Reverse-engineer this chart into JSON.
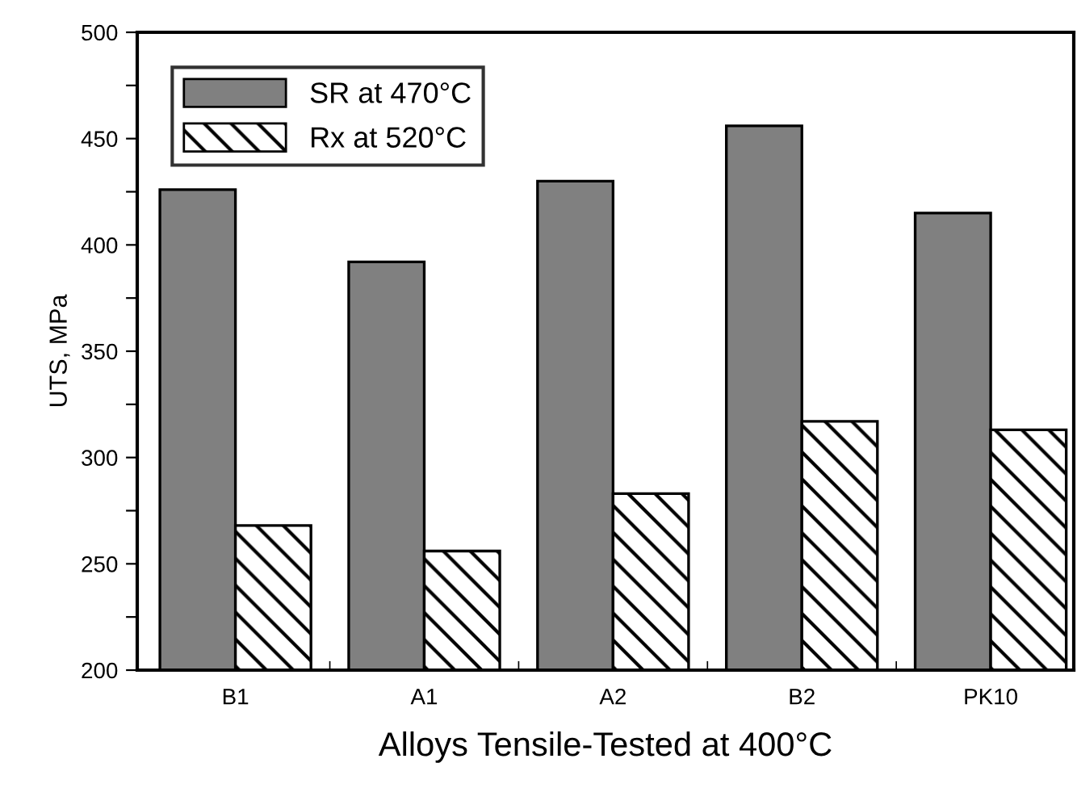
{
  "chart_data": {
    "type": "bar",
    "xlabel": "Alloys Tensile-Tested at 400°C",
    "ylabel": "UTS, MPa",
    "categories": [
      "B1",
      "A1",
      "A2",
      "B2",
      "PK10"
    ],
    "series": [
      {
        "name": "SR at 470°C",
        "color": "#808080",
        "values": [
          426,
          392,
          430,
          456,
          415
        ]
      },
      {
        "name": "Rx at 520°C",
        "color": "#000000",
        "values": [
          268,
          256,
          283,
          317,
          313
        ]
      }
    ],
    "ylim": [
      200,
      500
    ],
    "yticks": [
      200,
      {
        "value": 225,
        "label": null
      },
      250,
      {
        "value": 275,
        "label": null
      },
      300,
      {
        "value": 325,
        "label": null
      },
      350,
      {
        "value": 375,
        "label": null
      },
      400,
      {
        "value": 425,
        "label": null
      },
      450,
      {
        "value": 475,
        "label": null
      },
      500
    ],
    "grid": false,
    "legend": "top left"
  }
}
